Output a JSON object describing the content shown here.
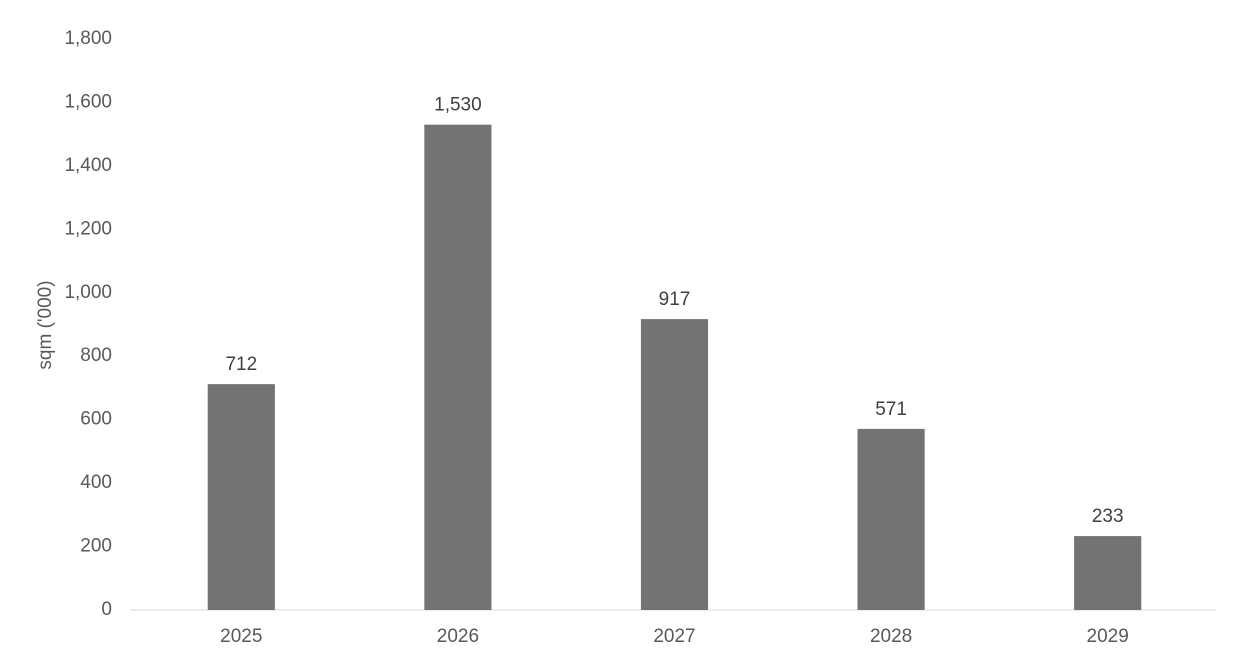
{
  "chart_data": {
    "type": "bar",
    "y_label": "sqm ('000)",
    "categories": [
      "2025",
      "2026",
      "2027",
      "2028",
      "2029"
    ],
    "values": [
      712,
      1530,
      917,
      571,
      233
    ],
    "value_labels": [
      "712",
      "1,530",
      "917",
      "571",
      "233"
    ],
    "color": "#737373",
    "ylim": [
      0,
      1800
    ],
    "yticks": [
      0,
      200,
      400,
      600,
      800,
      {
        "value": 1000,
        "label": "1,000"
      },
      {
        "value": 1200,
        "label": "1,200"
      },
      {
        "value": 1400,
        "label": "1,400"
      },
      {
        "value": 1600,
        "label": "1,600"
      },
      {
        "value": 1800,
        "label": "1,800"
      }
    ],
    "grid": false
  }
}
